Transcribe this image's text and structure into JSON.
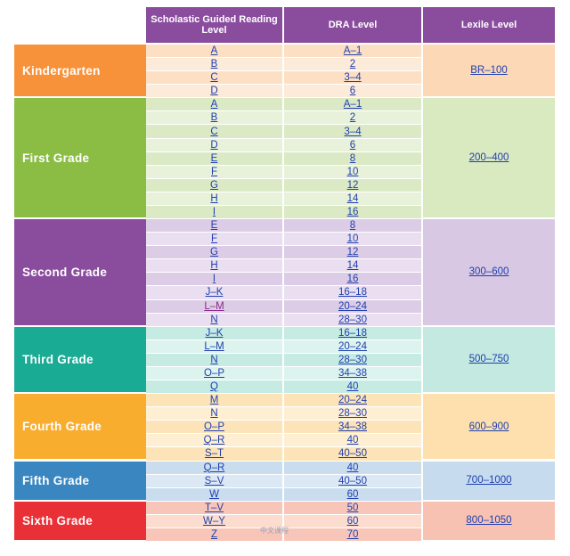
{
  "header": {
    "guided_reading": "Scholastic Guided Reading Level",
    "dra": "DRA Level",
    "lexile": "Lexile Level"
  },
  "grades": [
    {
      "name": "Kindergarten",
      "lexile": "BR–100",
      "color": "#f7923a",
      "light": "#fde0c4",
      "lighter": "#fdebd9",
      "lexbg": "#fcd8b6",
      "rows": [
        [
          "A",
          "A–1"
        ],
        [
          "B",
          "2"
        ],
        [
          "C",
          "3–4"
        ],
        [
          "D",
          "6"
        ]
      ]
    },
    {
      "name": "First Grade",
      "lexile": "200–400",
      "color": "#8bbd45",
      "light": "#dbeac5",
      "lighter": "#e8f2da",
      "lexbg": "#d9e9c0",
      "rows": [
        [
          "A",
          "A–1"
        ],
        [
          "B",
          "2"
        ],
        [
          "C",
          "3–4"
        ],
        [
          "D",
          "6"
        ],
        [
          "E",
          "8"
        ],
        [
          "F",
          "10"
        ],
        [
          "G",
          "12"
        ],
        [
          "H",
          "14"
        ],
        [
          "I",
          "16"
        ]
      ]
    },
    {
      "name": "Second Grade",
      "lexile": "300–600",
      "color": "#8a4d9e",
      "light": "#dccce6",
      "lighter": "#e9dff0",
      "lexbg": "#d9c8e3",
      "rows": [
        [
          "E",
          "8"
        ],
        [
          "F",
          "10"
        ],
        [
          "G",
          "12"
        ],
        [
          "H",
          "14"
        ],
        [
          "I",
          "16"
        ],
        [
          "J–K",
          "16–18"
        ],
        [
          "L–M",
          "20–24"
        ],
        [
          "N",
          "28–30"
        ]
      ]
    },
    {
      "name": "Third Grade",
      "lexile": "500–750",
      "color": "#1aab95",
      "light": "#c6ebe3",
      "lighter": "#dcf3ee",
      "lexbg": "#c3e9e0",
      "rows": [
        [
          "J–K",
          "16–18"
        ],
        [
          "L–M",
          "20–24"
        ],
        [
          "N",
          "28–30"
        ],
        [
          "O–P",
          "34–38"
        ],
        [
          "Q",
          "40"
        ]
      ]
    },
    {
      "name": "Fourth Grade",
      "lexile": "600–900",
      "color": "#f9ad2f",
      "light": "#fde4b8",
      "lighter": "#feefd3",
      "lexbg": "#fde0ad",
      "rows": [
        [
          "M",
          "20–24"
        ],
        [
          "N",
          "28–30"
        ],
        [
          "O–P",
          "34–38"
        ],
        [
          "Q–R",
          "40"
        ],
        [
          "S–T",
          "40–50"
        ]
      ]
    },
    {
      "name": "Fifth Grade",
      "lexile": "700–1000",
      "color": "#3a86c0",
      "light": "#c9ddef",
      "lighter": "#dce9f5",
      "lexbg": "#c6dbee",
      "rows": [
        [
          "Q–R",
          "40"
        ],
        [
          "S–V",
          "40–50"
        ],
        [
          "W",
          "60"
        ]
      ]
    },
    {
      "name": "Sixth Grade",
      "lexile": "800–1050",
      "color": "#ea3037",
      "light": "#f8c6b8",
      "lighter": "#fbdccf",
      "lexbg": "#f7c2b2",
      "rows": [
        [
          "T–V",
          "50"
        ],
        [
          "W–Y",
          "60"
        ],
        [
          "Z",
          "70"
        ]
      ]
    }
  ],
  "visited_rows": [
    "L–M"
  ],
  "watermark": "中文课程"
}
